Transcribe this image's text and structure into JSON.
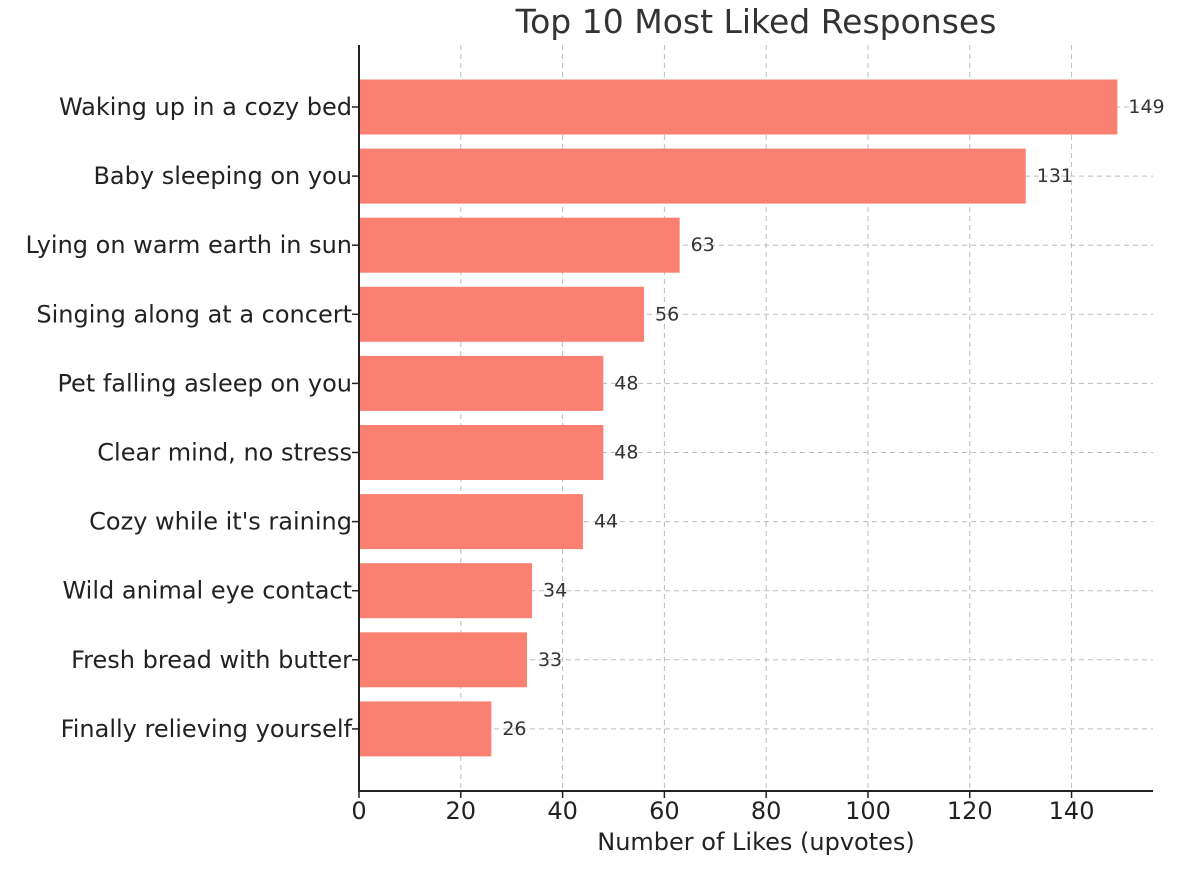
{
  "chart_data": {
    "type": "bar",
    "orientation": "horizontal",
    "title": "Top 10 Most Liked Responses",
    "xlabel": "Number of Likes (upvotes)",
    "ylabel": "",
    "categories": [
      "Waking up in a cozy bed",
      "Baby sleeping on you",
      "Lying on warm earth in sun",
      "Singing along at a concert",
      "Pet falling asleep on you",
      "Clear mind, no stress",
      "Cozy while it's raining",
      "Wild animal eye contact",
      "Fresh bread with butter",
      "Finally relieving yourself"
    ],
    "values": [
      149,
      131,
      63,
      56,
      48,
      48,
      44,
      34,
      33,
      26
    ],
    "data_labels": [
      "149",
      "131",
      "63",
      "56",
      "48",
      "48",
      "44",
      "34",
      "33",
      "26"
    ],
    "xlim": [
      0,
      156
    ],
    "xticks": [
      0,
      20,
      40,
      60,
      80,
      100,
      120,
      140
    ],
    "xtick_labels": [
      "0",
      "20",
      "40",
      "60",
      "80",
      "100",
      "120",
      "140"
    ],
    "grid": true,
    "bar_color": "#fa8072"
  }
}
